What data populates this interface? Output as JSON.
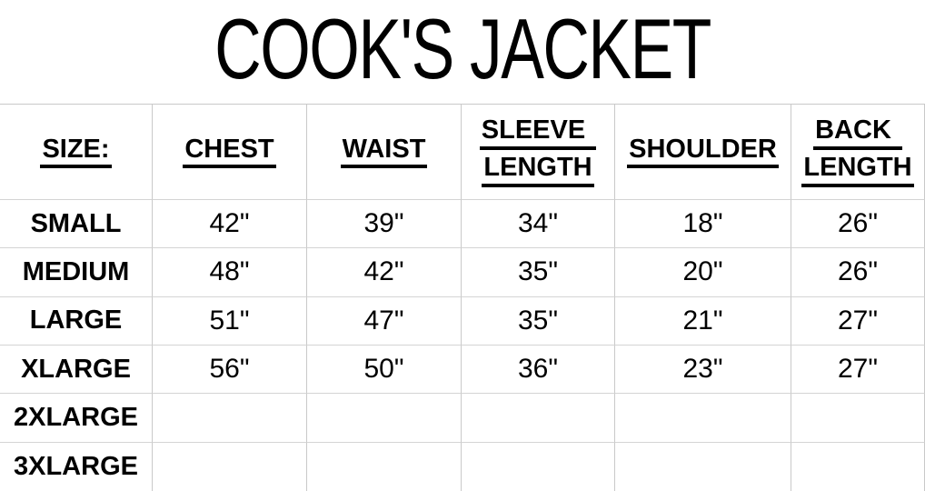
{
  "title": "COOK'S JACKET",
  "colors": {
    "background": "#ffffff",
    "text": "#000000",
    "gridline": "#c9c9c9"
  },
  "table": {
    "headers": [
      {
        "lines": [
          "SIZE:"
        ]
      },
      {
        "lines": [
          "CHEST"
        ]
      },
      {
        "lines": [
          "WAIST"
        ]
      },
      {
        "lines": [
          "SLEEVE",
          "LENGTH"
        ]
      },
      {
        "lines": [
          "SHOULDER"
        ]
      },
      {
        "lines": [
          "BACK",
          "LENGTH"
        ]
      }
    ],
    "rows": [
      {
        "size": "SMALL",
        "values": [
          "42\"",
          "39\"",
          "34\"",
          "18\"",
          "26\""
        ]
      },
      {
        "size": "MEDIUM",
        "values": [
          "48\"",
          "42\"",
          "35\"",
          "20\"",
          "26\""
        ]
      },
      {
        "size": "LARGE",
        "values": [
          "51\"",
          "47\"",
          "35\"",
          "21\"",
          "27\""
        ]
      },
      {
        "size": "XLARGE",
        "values": [
          "56\"",
          "50\"",
          "36\"",
          "23\"",
          "27\""
        ]
      },
      {
        "size": "2XLARGE",
        "values": [
          "",
          "",
          "",
          "",
          ""
        ]
      },
      {
        "size": "3XLARGE",
        "values": [
          "",
          "",
          "",
          "",
          ""
        ]
      }
    ]
  }
}
